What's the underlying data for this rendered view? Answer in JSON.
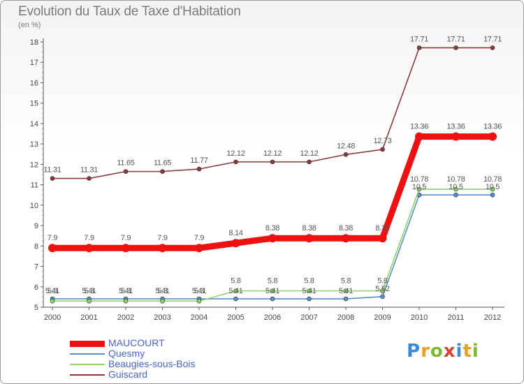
{
  "chart_data": {
    "type": "line",
    "title": "Evolution du Taux de Taxe d'Habitation",
    "subtitle": "(en %)",
    "x": [
      "2000",
      "2001",
      "2002",
      "2003",
      "2004",
      "2005",
      "2006",
      "2007",
      "2008",
      "2009",
      "2010",
      "2011",
      "2012"
    ],
    "ylim": [
      5,
      18
    ],
    "yticks": [
      5,
      6,
      7,
      8,
      9,
      10,
      11,
      12,
      13,
      14,
      15,
      16,
      17,
      18
    ],
    "grid": false,
    "legend_position": "bottom-left",
    "series": [
      {
        "name": "MAUCOURT",
        "color": "#ee1111",
        "values": [
          7.9,
          7.9,
          7.9,
          7.9,
          7.9,
          8.14,
          8.38,
          8.38,
          8.38,
          8.38,
          13.36,
          13.36,
          13.36
        ],
        "labels": [
          "7.9",
          "7.9",
          "7.9",
          "7.9",
          "7.9",
          "8.14",
          "8.38",
          "8.38",
          "8.38",
          "8.38",
          "13.36",
          "13.36",
          "13.36"
        ]
      },
      {
        "name": "Quesmy",
        "color": "#5b8fc8",
        "values": [
          5.41,
          5.41,
          5.41,
          5.41,
          5.41,
          5.41,
          5.41,
          5.41,
          5.41,
          5.52,
          10.5,
          10.5,
          10.5
        ],
        "labels": [
          "5.41",
          "5.41",
          "5.41",
          "5.41",
          "5.41",
          "5.41",
          "5.41",
          "5.41",
          "5.41",
          "5.52",
          "10.5",
          "10.5",
          "10.5"
        ]
      },
      {
        "name": "Beaugies-sous-Bois",
        "color": "#8ed46a",
        "values": [
          5.3,
          5.3,
          5.3,
          5.3,
          5.3,
          5.8,
          5.8,
          5.8,
          5.8,
          5.8,
          10.78,
          10.78,
          10.78
        ],
        "labels": [
          "5.3",
          "5.3",
          "5.3",
          "5.3",
          "5.3",
          "5.8",
          "5.8",
          "5.8",
          "5.8",
          "5.8",
          "10.78",
          "10.78",
          "10.78"
        ]
      },
      {
        "name": "Guiscard",
        "color": "#8b3a3a",
        "values": [
          11.31,
          11.31,
          11.65,
          11.65,
          11.77,
          12.12,
          12.12,
          12.12,
          12.48,
          12.73,
          17.71,
          17.71,
          17.71
        ],
        "labels": [
          "11.31",
          "11.31",
          "11.65",
          "11.65",
          "11.77",
          "12.12",
          "12.12",
          "12.12",
          "12.48",
          "12.73",
          "17.71",
          "17.71",
          "17.71"
        ]
      }
    ]
  },
  "logo_text": "Proxiti"
}
